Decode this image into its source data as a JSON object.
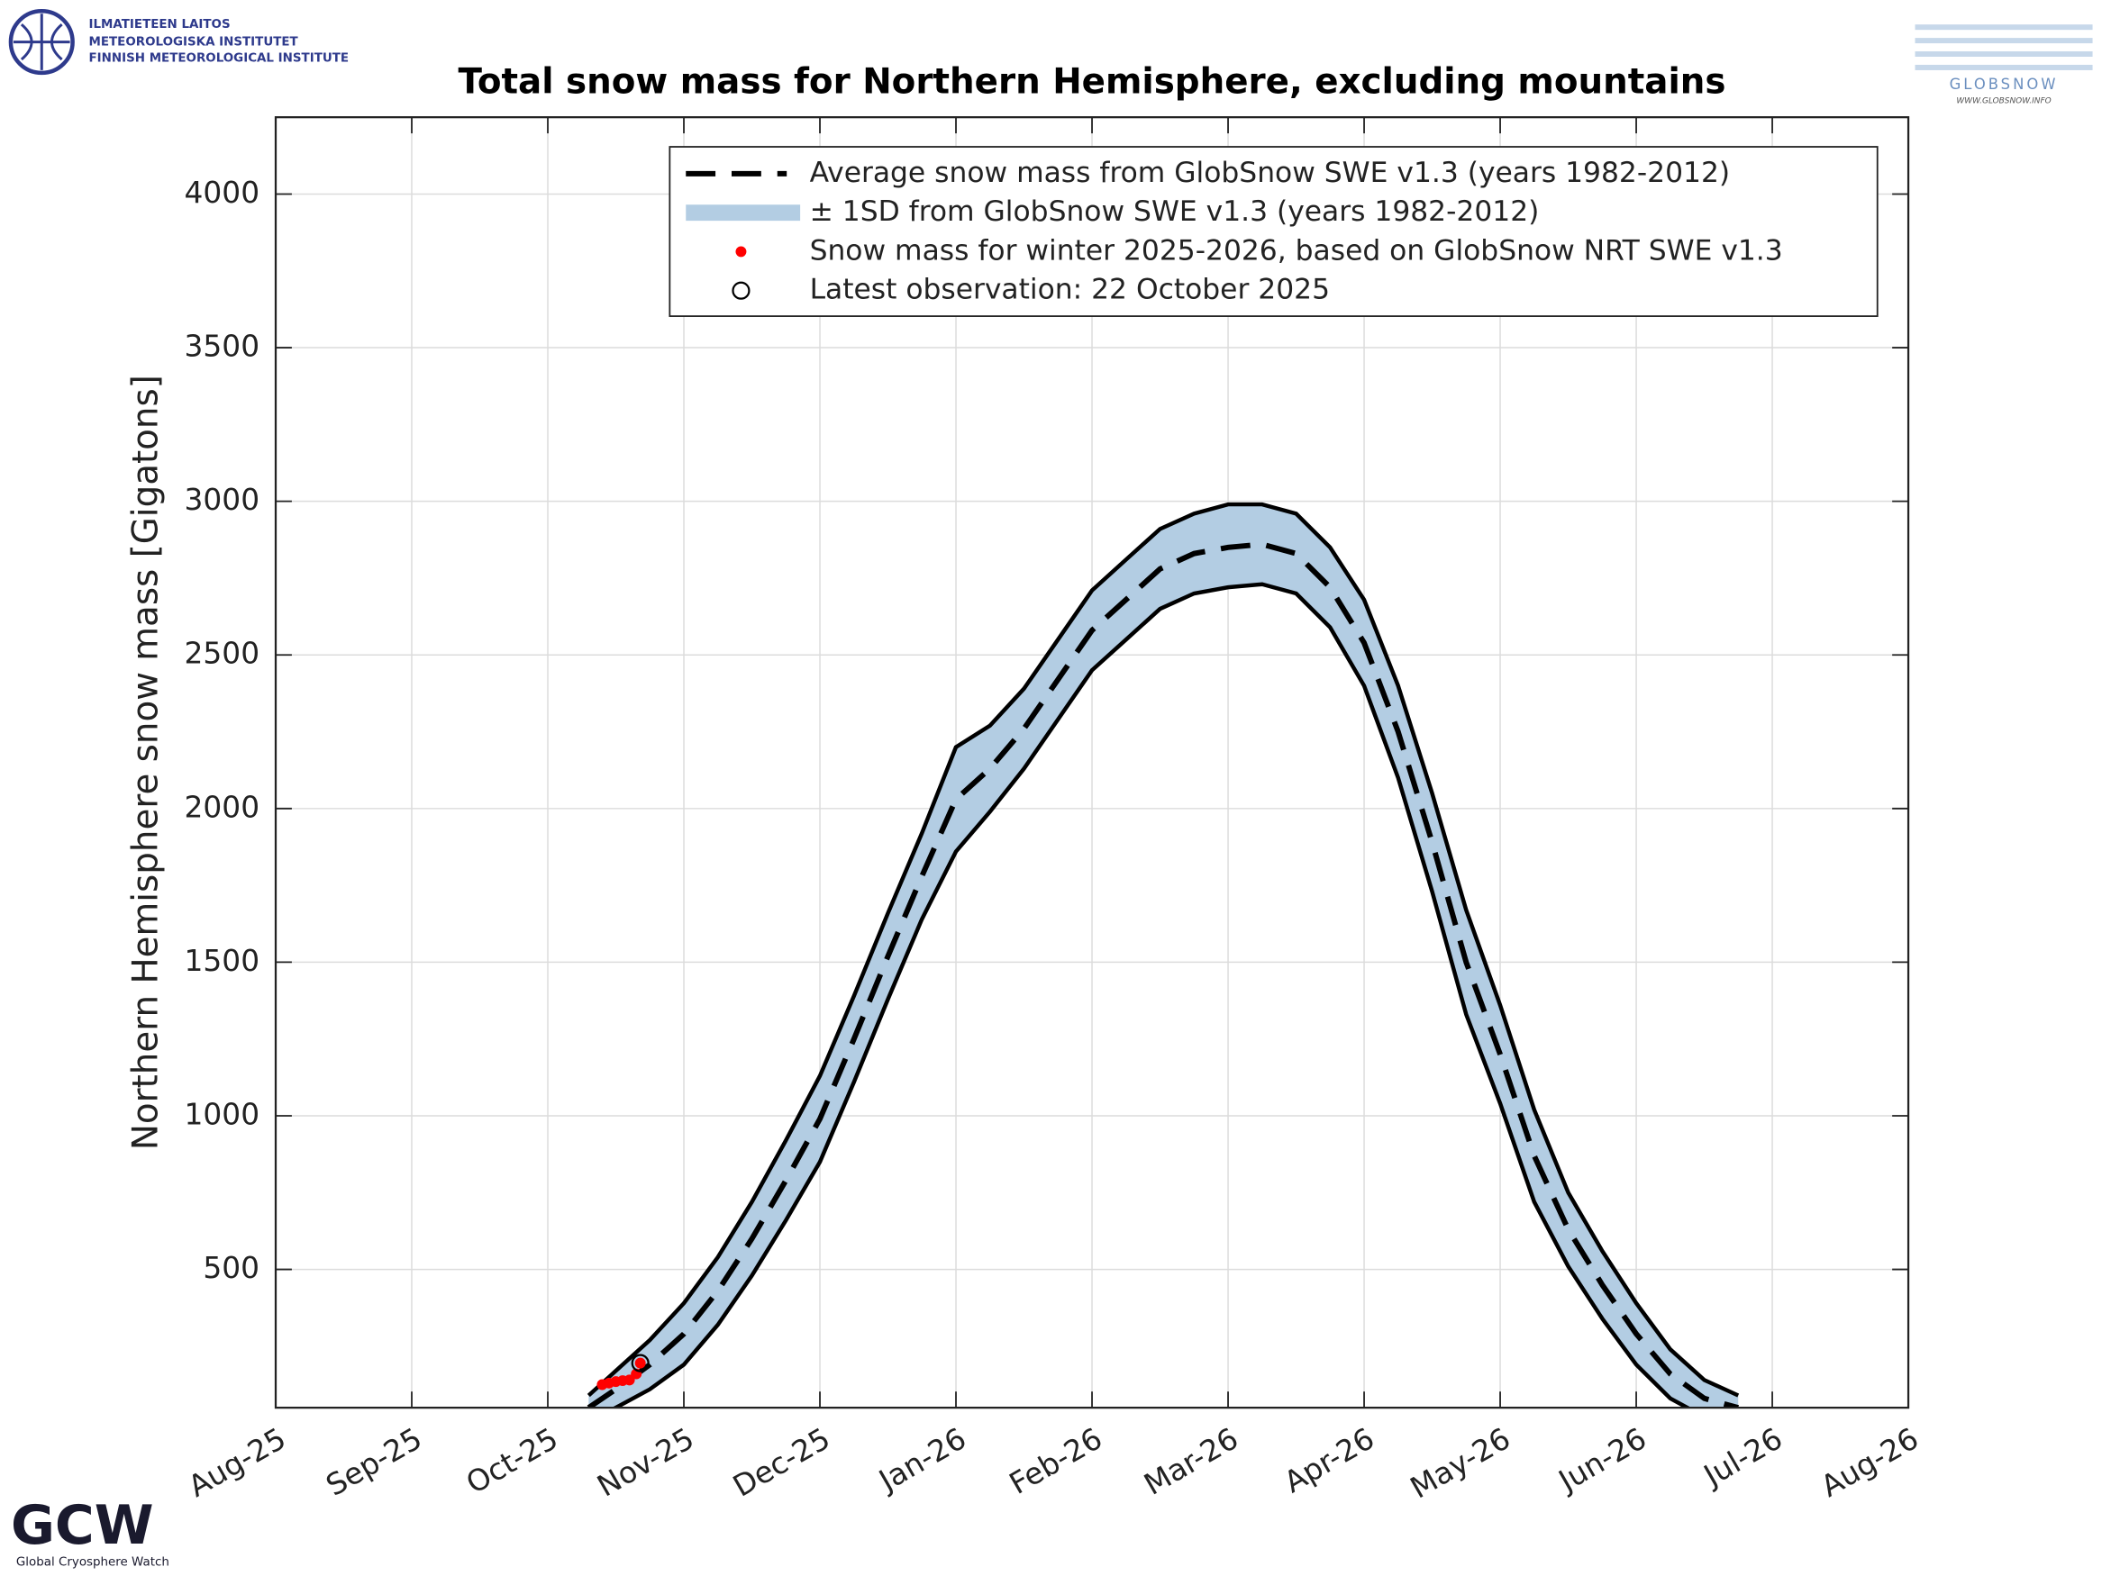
{
  "logos": {
    "fmi": [
      "ILMATIETEEN LAITOS",
      "METEOROLOGISKA INSTITUTET",
      "FINNISH METEOROLOGICAL INSTITUTE"
    ],
    "globsnow": "GLOBSNOW",
    "globsnow_url": "WWW.GLOBSNOW.INFO",
    "gcw": "GCW",
    "gcw_name": "Global Cryosphere Watch"
  },
  "chart_data": {
    "type": "line",
    "title": "Total snow mass for Northern Hemisphere, excluding mountains",
    "y_label": "Northern Hemisphere snow mass [Gigatons]",
    "xlim": [
      0,
      12
    ],
    "xticks": [
      {
        "value": 0,
        "label": "Aug-25"
      },
      {
        "value": 1,
        "label": "Sep-25"
      },
      {
        "value": 2,
        "label": "Oct-25"
      },
      {
        "value": 3,
        "label": "Nov-25"
      },
      {
        "value": 4,
        "label": "Dec-25"
      },
      {
        "value": 5,
        "label": "Jan-26"
      },
      {
        "value": 6,
        "label": "Feb-26"
      },
      {
        "value": 7,
        "label": "Mar-26"
      },
      {
        "value": 8,
        "label": "Apr-26"
      },
      {
        "value": 9,
        "label": "May-26"
      },
      {
        "value": 10,
        "label": "Jun-26"
      },
      {
        "value": 11,
        "label": "Jul-26"
      },
      {
        "value": 12,
        "label": "Aug-26"
      }
    ],
    "ylim": [
      50,
      4250
    ],
    "yticks": [
      500,
      1000,
      1500,
      2000,
      2500,
      3000,
      3500,
      4000
    ],
    "grid": true,
    "x": [
      2.3,
      2.5,
      2.75,
      3,
      3.25,
      3.5,
      3.75,
      4,
      4.25,
      4.5,
      4.75,
      5,
      5.25,
      5.5,
      5.75,
      6,
      6.25,
      6.5,
      6.75,
      7,
      7.25,
      7.5,
      7.75,
      8,
      8.25,
      8.5,
      8.75,
      9,
      9.25,
      9.5,
      9.75,
      10,
      10.25,
      10.5,
      10.75
    ],
    "series": [
      {
        "name": "Average snow mass from GlobSnow SWE v1.3 (years 1982-2012)",
        "color": "#000000",
        "style": "dashed",
        "values": [
          50,
          110,
          190,
          290,
          430,
          600,
          790,
          990,
          1250,
          1520,
          1780,
          2030,
          2130,
          2260,
          2420,
          2580,
          2680,
          2780,
          2830,
          2850,
          2860,
          2830,
          2720,
          2540,
          2250,
          1890,
          1500,
          1200,
          870,
          630,
          450,
          290,
          160,
          80,
          50
        ]
      },
      {
        "name": "± 1SD from GlobSnow SWE v1.3 (years 1982-2012)",
        "color": "#b3cde3",
        "style": "band",
        "upper": [
          90,
          170,
          270,
          390,
          540,
          720,
          920,
          1130,
          1390,
          1660,
          1920,
          2200,
          2270,
          2390,
          2550,
          2710,
          2810,
          2910,
          2960,
          2990,
          2990,
          2960,
          2850,
          2680,
          2400,
          2050,
          1670,
          1360,
          1020,
          750,
          560,
          390,
          240,
          140,
          90
        ],
        "lower": [
          10,
          50,
          110,
          190,
          320,
          480,
          660,
          850,
          1110,
          1380,
          1640,
          1860,
          1990,
          2130,
          2290,
          2450,
          2550,
          2650,
          2700,
          2720,
          2730,
          2700,
          2590,
          2400,
          2100,
          1730,
          1330,
          1040,
          720,
          510,
          340,
          190,
          80,
          20,
          10
        ]
      },
      {
        "name": "Snow mass for winter 2025-2026, based on GlobSnow NRT SWE v1.3",
        "color": "#ff0000",
        "style": "points",
        "x": [
          2.4,
          2.45,
          2.5,
          2.55,
          2.6,
          2.65,
          2.68
        ],
        "values": [
          125,
          130,
          135,
          138,
          140,
          160,
          195
        ]
      },
      {
        "name": "Latest observation: 22 October 2025",
        "color": "#000000",
        "style": "open-circle",
        "x": [
          2.68
        ],
        "values": [
          195
        ]
      }
    ]
  }
}
